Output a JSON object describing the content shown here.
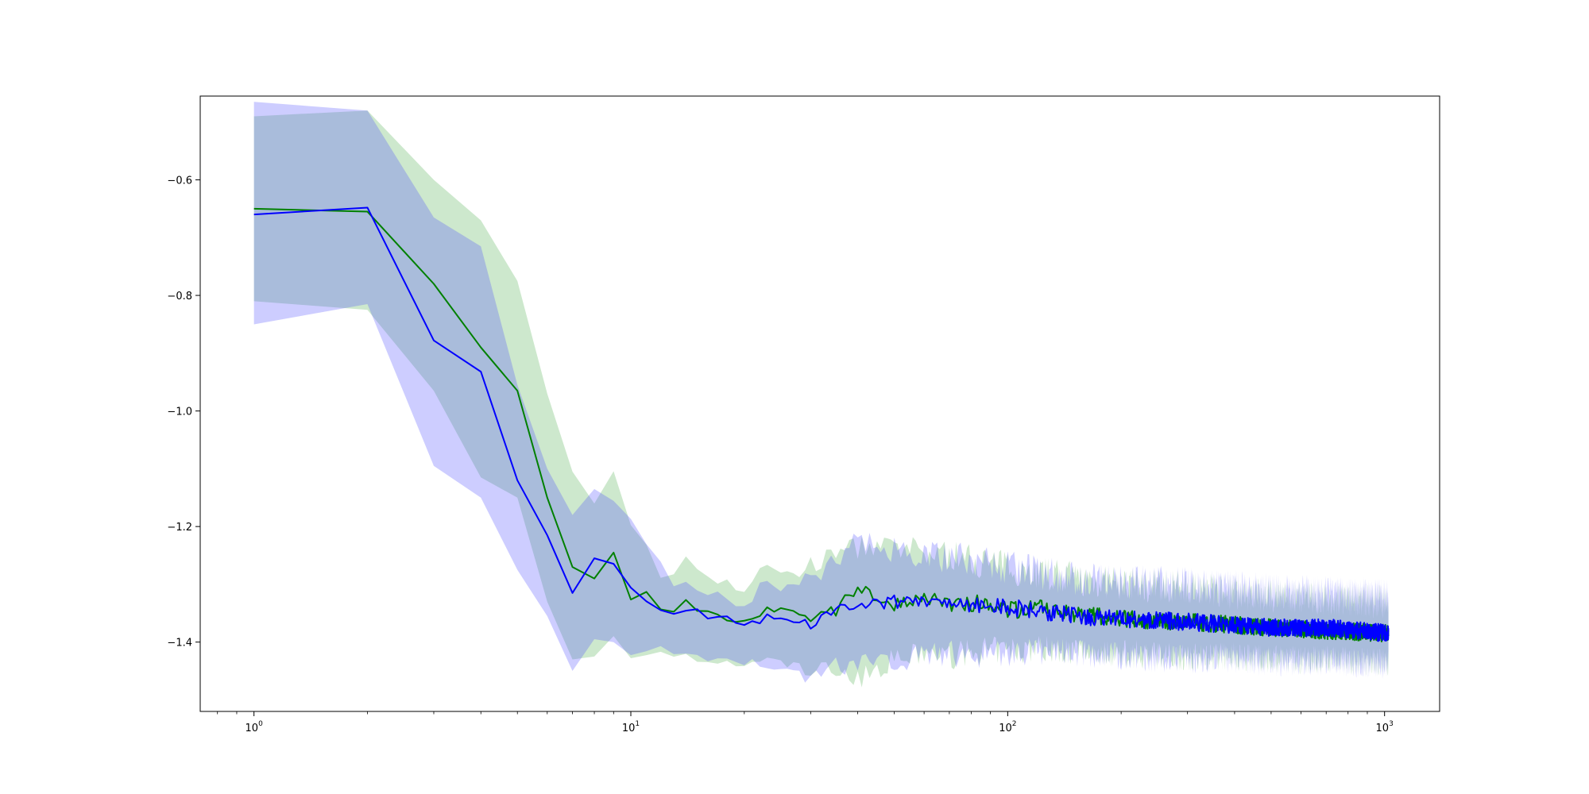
{
  "chart_data": {
    "type": "line",
    "title": "",
    "xlabel": "",
    "ylabel": "",
    "xscale": "log",
    "xlim": [
      0.72,
      1400
    ],
    "ylim": [
      -1.52,
      -0.455
    ],
    "grid": false,
    "legend": "none",
    "x_ticks": [
      {
        "base": "10",
        "exp": "0",
        "value": 1
      },
      {
        "base": "10",
        "exp": "1",
        "value": 10
      },
      {
        "base": "10",
        "exp": "2",
        "value": 100
      },
      {
        "base": "10",
        "exp": "3",
        "value": 1000
      }
    ],
    "y_ticks": [
      {
        "label": "−0.6",
        "value": -0.6
      },
      {
        "label": "−0.8",
        "value": -0.8
      },
      {
        "label": "−1.0",
        "value": -1.0
      },
      {
        "label": "−1.2",
        "value": -1.2
      },
      {
        "label": "−1.4",
        "value": -1.4
      }
    ],
    "series": [
      {
        "color": "#008000",
        "band_color": "#2ca02c",
        "x": [
          1,
          2,
          3,
          4,
          5,
          6,
          7,
          8,
          9,
          10,
          11,
          12,
          13,
          14,
          15,
          16,
          18,
          20,
          23,
          26,
          30,
          35,
          40,
          50,
          60,
          70,
          85,
          100,
          120,
          150,
          200,
          300,
          400,
          500,
          700,
          1024
        ],
        "values": [
          -0.65,
          -0.655,
          -0.78,
          -0.89,
          -0.965,
          -1.15,
          -1.27,
          -1.29,
          -1.245,
          -1.325,
          -1.315,
          -1.345,
          -1.35,
          -1.33,
          -1.35,
          -1.345,
          -1.36,
          -1.365,
          -1.345,
          -1.35,
          -1.36,
          -1.345,
          -1.305,
          -1.335,
          -1.32,
          -1.34,
          -1.33,
          -1.345,
          -1.34,
          -1.35,
          -1.36,
          -1.365,
          -1.37,
          -1.375,
          -1.38,
          -1.385
        ],
        "upper": [
          -0.49,
          -0.48,
          -0.6,
          -0.67,
          -0.775,
          -0.97,
          -1.105,
          -1.16,
          -1.105,
          -1.2,
          -1.23,
          -1.285,
          -1.28,
          -1.255,
          -1.27,
          -1.285,
          -1.295,
          -1.31,
          -1.27,
          -1.28,
          -1.27,
          -1.245,
          -1.235,
          -1.24,
          -1.245,
          -1.25,
          -1.26,
          -1.27,
          -1.28,
          -1.29,
          -1.3,
          -1.305,
          -1.315,
          -1.32,
          -1.325,
          -1.33
        ],
        "lower": [
          -0.81,
          -0.825,
          -0.965,
          -1.115,
          -1.15,
          -1.33,
          -1.43,
          -1.425,
          -1.39,
          -1.43,
          -1.425,
          -1.415,
          -1.43,
          -1.425,
          -1.435,
          -1.43,
          -1.44,
          -1.44,
          -1.43,
          -1.44,
          -1.45,
          -1.445,
          -1.465,
          -1.43,
          -1.42,
          -1.425,
          -1.415,
          -1.415,
          -1.41,
          -1.415,
          -1.42,
          -1.425,
          -1.425,
          -1.43,
          -1.43,
          -1.435
        ]
      },
      {
        "color": "#0000ff",
        "band_color": "#4d4dff",
        "x": [
          1,
          2,
          3,
          4,
          5,
          6,
          7,
          8,
          9,
          10,
          11,
          12,
          13,
          14,
          15,
          16,
          18,
          20,
          23,
          26,
          30,
          35,
          40,
          50,
          60,
          70,
          85,
          100,
          120,
          150,
          200,
          300,
          400,
          500,
          700,
          1024
        ],
        "values": [
          -0.66,
          -0.648,
          -0.878,
          -0.932,
          -1.12,
          -1.215,
          -1.315,
          -1.255,
          -1.265,
          -1.305,
          -1.33,
          -1.345,
          -1.35,
          -1.345,
          -1.345,
          -1.355,
          -1.36,
          -1.375,
          -1.355,
          -1.355,
          -1.37,
          -1.345,
          -1.335,
          -1.33,
          -1.33,
          -1.34,
          -1.335,
          -1.34,
          -1.345,
          -1.355,
          -1.36,
          -1.365,
          -1.37,
          -1.375,
          -1.375,
          -1.385
        ],
        "upper": [
          -0.465,
          -0.48,
          -0.665,
          -0.715,
          -0.955,
          -1.1,
          -1.18,
          -1.135,
          -1.155,
          -1.185,
          -1.23,
          -1.265,
          -1.305,
          -1.3,
          -1.31,
          -1.31,
          -1.325,
          -1.33,
          -1.295,
          -1.3,
          -1.295,
          -1.255,
          -1.22,
          -1.24,
          -1.245,
          -1.255,
          -1.26,
          -1.27,
          -1.28,
          -1.29,
          -1.295,
          -1.3,
          -1.305,
          -1.31,
          -1.315,
          -1.32
        ],
        "lower": [
          -0.85,
          -0.815,
          -1.095,
          -1.15,
          -1.275,
          -1.355,
          -1.45,
          -1.395,
          -1.4,
          -1.425,
          -1.415,
          -1.41,
          -1.425,
          -1.42,
          -1.425,
          -1.43,
          -1.435,
          -1.44,
          -1.435,
          -1.445,
          -1.46,
          -1.44,
          -1.44,
          -1.43,
          -1.425,
          -1.42,
          -1.42,
          -1.42,
          -1.415,
          -1.42,
          -1.425,
          -1.43,
          -1.43,
          -1.435,
          -1.435,
          -1.44
        ]
      }
    ]
  }
}
